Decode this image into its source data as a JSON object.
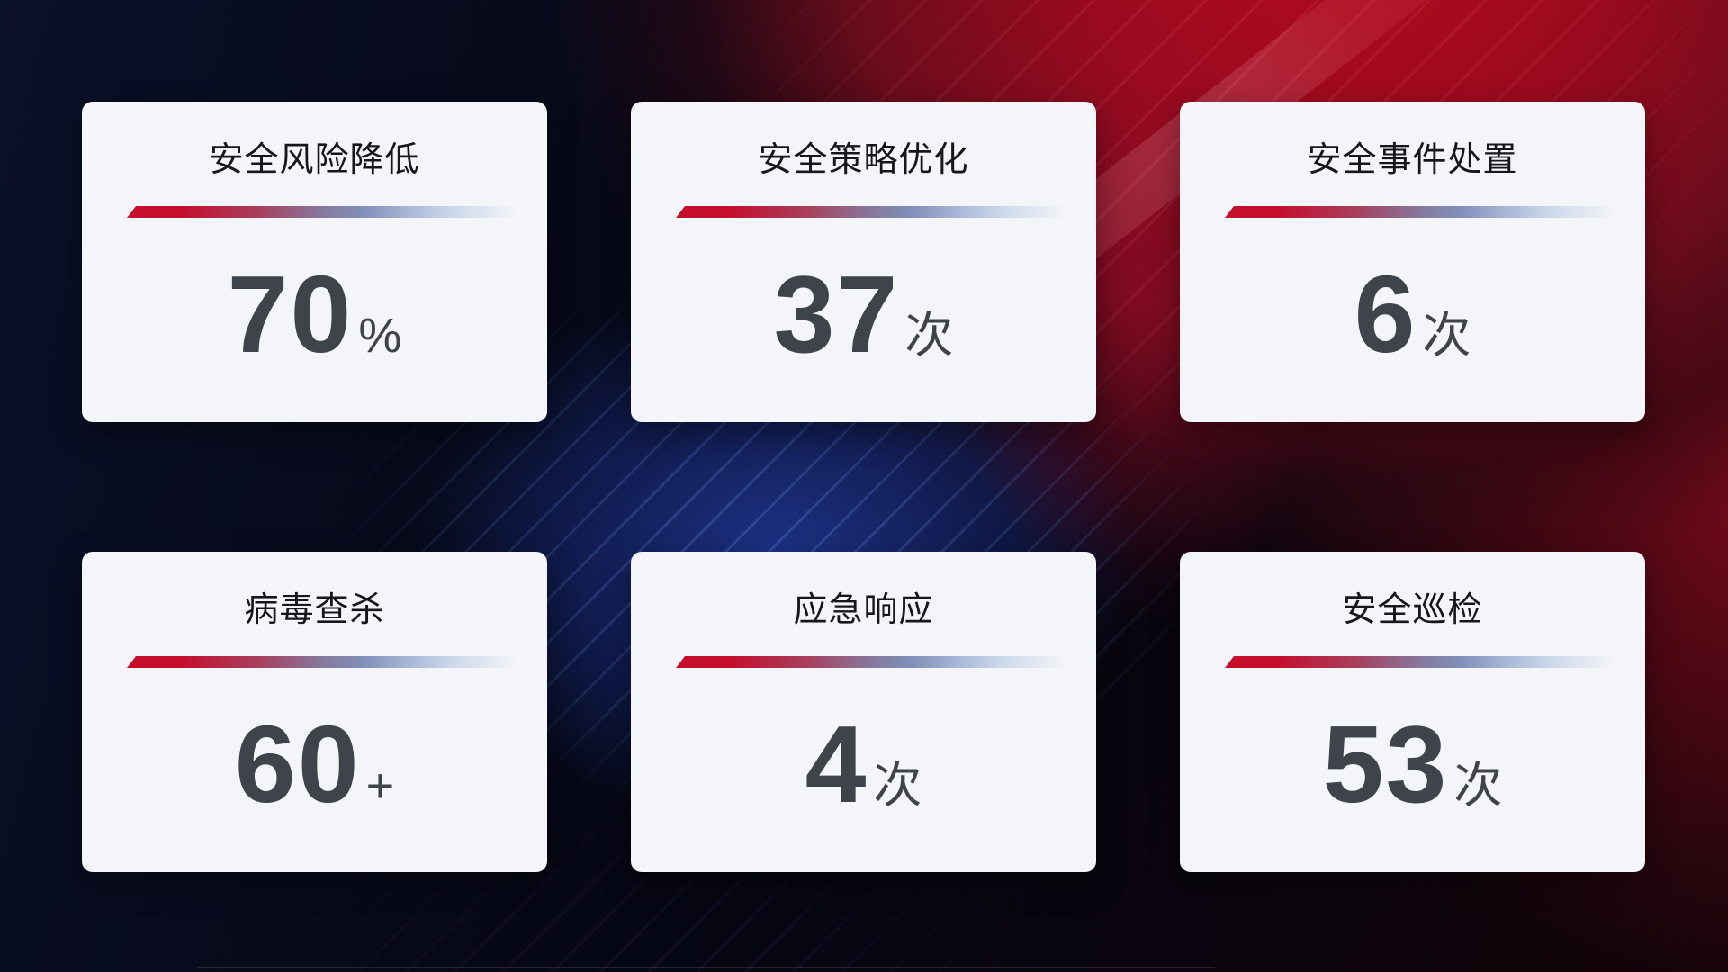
{
  "theme": {
    "bg_base": "#05060e",
    "bg_red_glow": "#a50618",
    "bg_blue_glow": "#1e3488",
    "card_bg": "#f4f5f8",
    "title_color": "#15171c",
    "value_color": "#3f434a",
    "divider_red": "#c50f2d",
    "divider_blue": "#a9bad9"
  },
  "cards": [
    {
      "title": "安全风险降低",
      "value": "70",
      "unit": "%"
    },
    {
      "title": "安全策略优化",
      "value": "37",
      "unit": "次"
    },
    {
      "title": "安全事件处置",
      "value": "6",
      "unit": "次"
    },
    {
      "title": "病毒查杀",
      "value": "60",
      "unit": "+"
    },
    {
      "title": "应急响应",
      "value": "4",
      "unit": "次"
    },
    {
      "title": "安全巡检",
      "value": "53",
      "unit": "次"
    }
  ]
}
